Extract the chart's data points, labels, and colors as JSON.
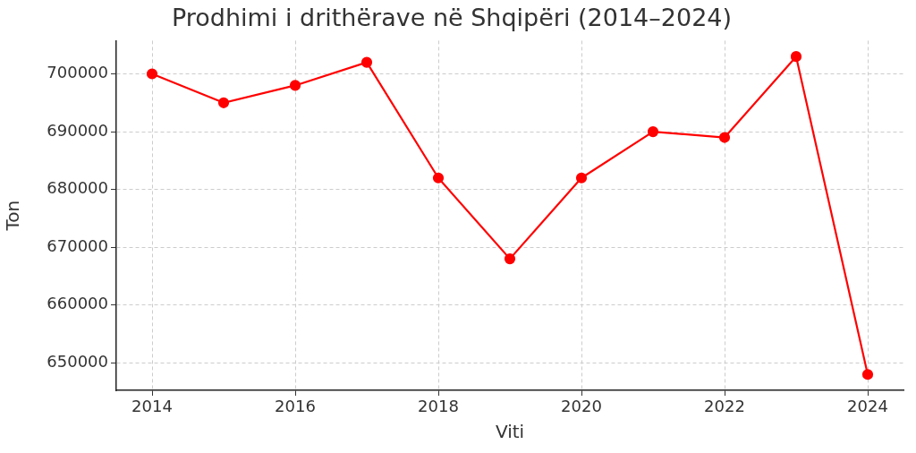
{
  "chart_data": {
    "type": "line",
    "title": "Prodhimi i drithërave në Shqipëri (2014–2024)",
    "xlabel": "Viti",
    "ylabel": "Ton",
    "x": [
      2014,
      2015,
      2016,
      2017,
      2018,
      2019,
      2020,
      2021,
      2022,
      2023,
      2024
    ],
    "series": [
      {
        "color": "#ff0000",
        "values": [
          700000,
          695000,
          698000,
          702000,
          682000,
          668000,
          682000,
          690000,
          689000,
          703000,
          648000
        ]
      }
    ],
    "xlim": [
      2013.5,
      2024.5
    ],
    "xticks": [
      2014,
      2016,
      2018,
      2020,
      2022,
      2024
    ],
    "ylim": [
      645250,
      705750
    ],
    "yticks": [
      650000,
      660000,
      670000,
      680000,
      690000,
      700000
    ],
    "grid": true,
    "legend": false,
    "marker": "circle",
    "line_style": "solid"
  }
}
